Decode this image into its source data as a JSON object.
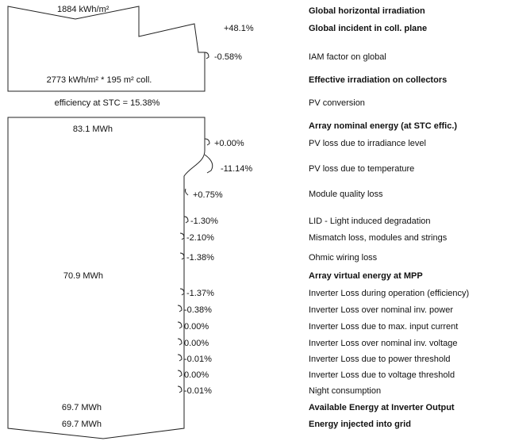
{
  "rows": [
    {
      "label": "Global horizontal irradiation",
      "value": "1884 kWh/m²",
      "bold": true
    },
    {
      "label": "Global incident in coll. plane",
      "value": "+48.1%",
      "bold": true
    },
    {
      "label": "IAM factor on global",
      "value": "-0.58%",
      "bold": false
    },
    {
      "label": "Effective irradiation on collectors",
      "value": "2773 kWh/m² * 195 m² coll.",
      "bold": true
    },
    {
      "label": "PV conversion",
      "value": "efficiency at STC = 15.38%",
      "bold": false
    },
    {
      "label": "Array nominal energy (at STC effic.)",
      "value": "83.1 MWh",
      "bold": true
    },
    {
      "label": "PV loss due to irradiance level",
      "value": "+0.00%",
      "bold": false
    },
    {
      "label": "PV loss due to temperature",
      "value": "-11.14%",
      "bold": false
    },
    {
      "label": "Module quality loss",
      "value": "+0.75%",
      "bold": false
    },
    {
      "label": "LID - Light induced degradation",
      "value": "-1.30%",
      "bold": false
    },
    {
      "label": "Mismatch loss, modules and strings",
      "value": "-2.10%",
      "bold": false
    },
    {
      "label": "Ohmic wiring loss",
      "value": "-1.38%",
      "bold": false
    },
    {
      "label": "Array virtual energy at MPP",
      "value": "70.9 MWh",
      "bold": true
    },
    {
      "label": "Inverter Loss during operation (efficiency)",
      "value": "-1.37%",
      "bold": false
    },
    {
      "label": "Inverter Loss over nominal inv. power",
      "value": "-0.38%",
      "bold": false
    },
    {
      "label": "Inverter Loss due to max. input current",
      "value": "0.00%",
      "bold": false
    },
    {
      "label": "Inverter Loss over nominal inv. voltage",
      "value": "0.00%",
      "bold": false
    },
    {
      "label": "Inverter Loss due to power threshold",
      "value": "-0.01%",
      "bold": false
    },
    {
      "label": "Inverter Loss due to voltage threshold",
      "value": "0.00%",
      "bold": false
    },
    {
      "label": "Night consumption",
      "value": "-0.01%",
      "bold": false
    },
    {
      "label": "Available Energy at Inverter Output",
      "value": "69.7 MWh",
      "bold": true
    },
    {
      "label": "Energy injected into grid",
      "value": "69.7 MWh",
      "bold": true
    }
  ]
}
